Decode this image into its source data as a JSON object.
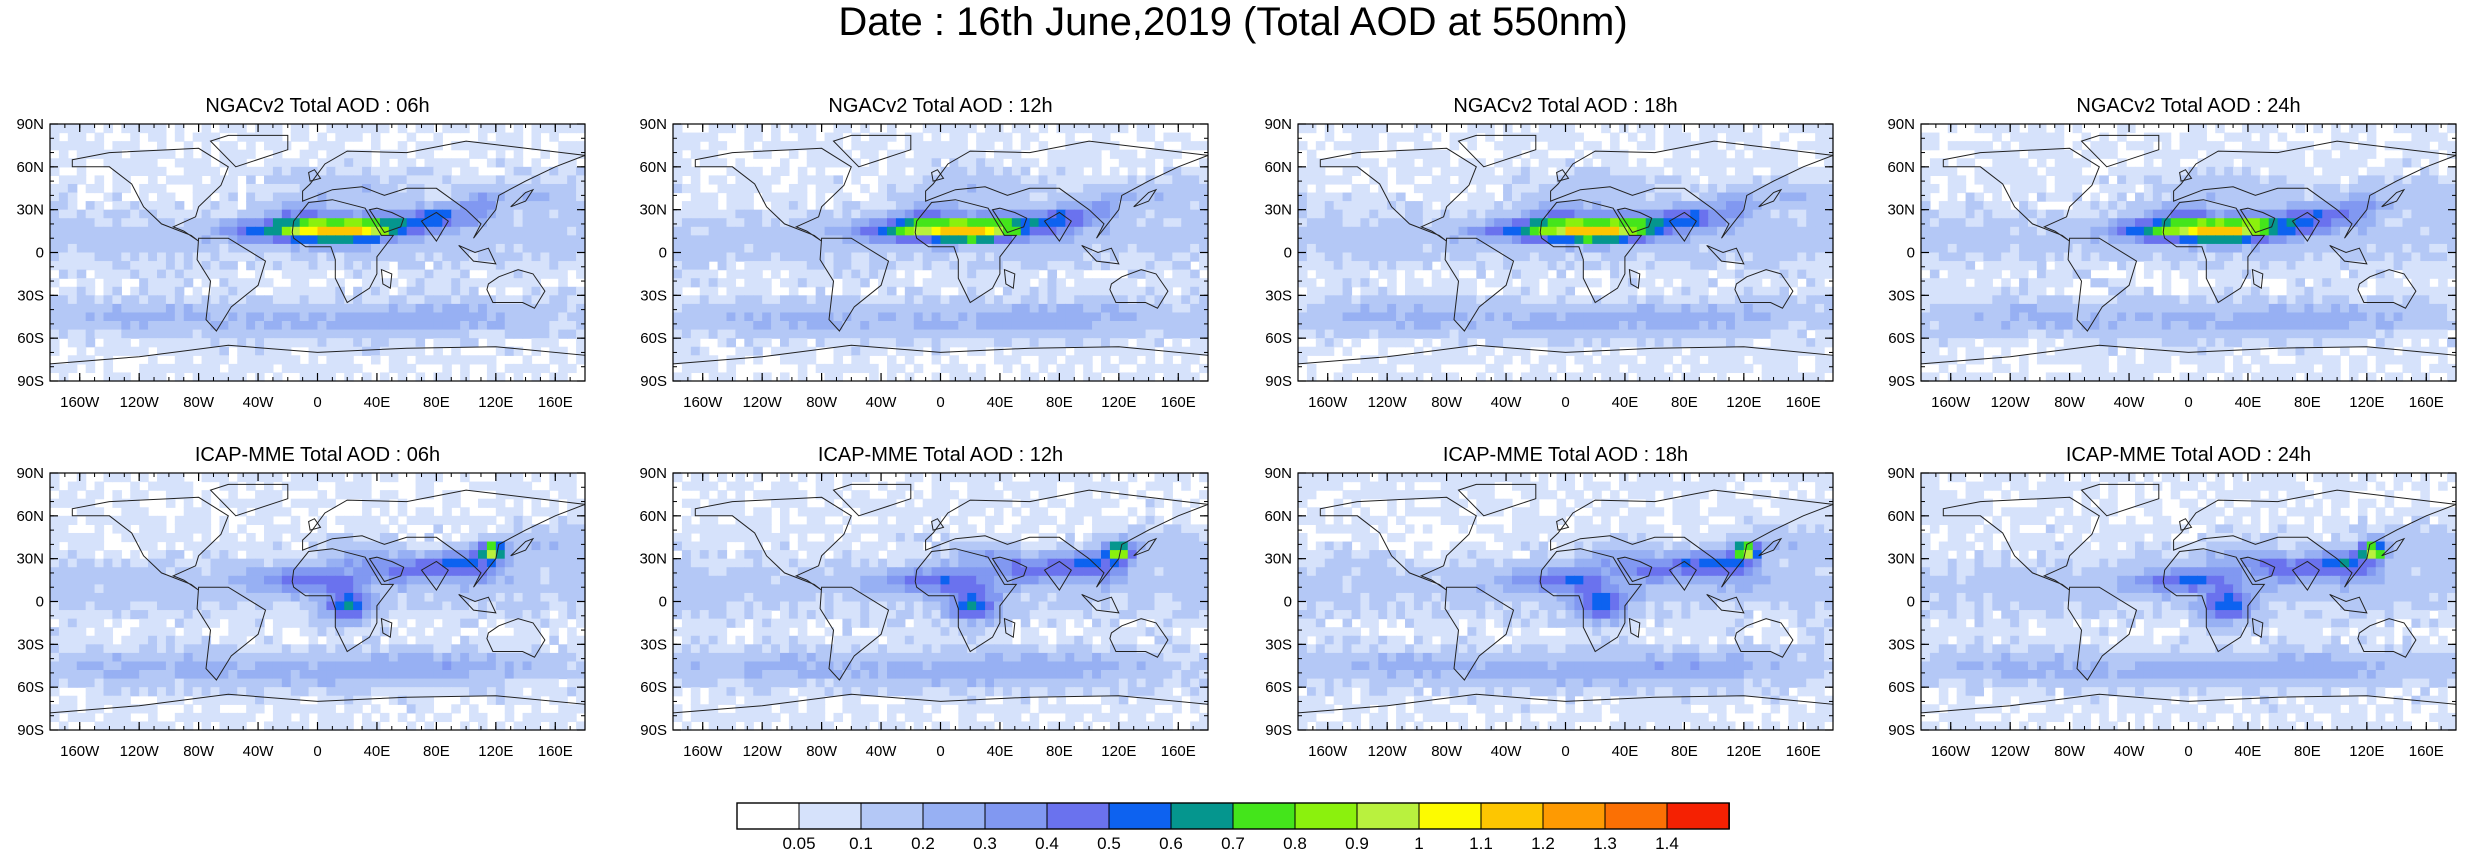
{
  "title": "Date : 16th June,2019 (Total AOD at 550nm)",
  "panels": [
    {
      "title": "NGACv2 Total AOD : 06h",
      "model": "NGACv2",
      "hour": "06h"
    },
    {
      "title": "NGACv2 Total AOD : 12h",
      "model": "NGACv2",
      "hour": "12h"
    },
    {
      "title": "NGACv2 Total AOD : 18h",
      "model": "NGACv2",
      "hour": "18h"
    },
    {
      "title": "NGACv2 Total AOD : 24h",
      "model": "NGACv2",
      "hour": "24h"
    },
    {
      "title": "ICAP-MME Total AOD : 06h",
      "model": "ICAP-MME",
      "hour": "06h"
    },
    {
      "title": "ICAP-MME Total AOD : 12h",
      "model": "ICAP-MME",
      "hour": "12h"
    },
    {
      "title": "ICAP-MME Total AOD : 18h",
      "model": "ICAP-MME",
      "hour": "18h"
    },
    {
      "title": "ICAP-MME Total AOD : 24h",
      "model": "ICAP-MME",
      "hour": "24h"
    }
  ],
  "axes": {
    "lon_ticks": [
      "160W",
      "120W",
      "80W",
      "40W",
      "0",
      "40E",
      "80E",
      "120E",
      "160E"
    ],
    "lon_tick_values": [
      -160,
      -120,
      -80,
      -40,
      0,
      40,
      80,
      120,
      160
    ],
    "lat_ticks": [
      "90N",
      "60N",
      "30N",
      "0",
      "30S",
      "60S",
      "90S"
    ],
    "lat_tick_values": [
      90,
      60,
      30,
      0,
      -30,
      -60,
      -90
    ],
    "lon_range": [
      -180,
      180
    ],
    "lat_range": [
      -90,
      90
    ]
  },
  "colorbar": {
    "labels": [
      "0.05",
      "0.1",
      "0.2",
      "0.3",
      "0.4",
      "0.5",
      "0.6",
      "0.7",
      "0.8",
      "0.9",
      "1",
      "1.1",
      "1.2",
      "1.3",
      "1.4"
    ],
    "colors": [
      "#ffffff",
      "#d6e2fb",
      "#b4c8f6",
      "#97b0f3",
      "#8198f1",
      "#6a72ee",
      "#0d62f0",
      "#05968e",
      "#44e51b",
      "#8bf10d",
      "#b9f13e",
      "#fdfb00",
      "#fdc601",
      "#fe9a02",
      "#fb7004",
      "#f52102"
    ]
  }
}
